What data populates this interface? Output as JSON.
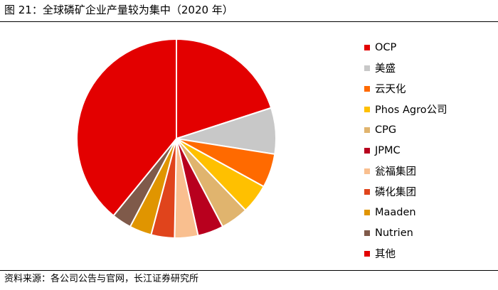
{
  "figure": {
    "title": "图 21：全球磷矿企业产量较为集中（2020 年）",
    "source": "资料来源：各公司公告与官网，长江证券研究所"
  },
  "chart_data": {
    "type": "pie",
    "title": "图 21：全球磷矿企业产量较为集中（2020 年）",
    "categories": [
      "OCP",
      "美盛",
      "云天化",
      "Phos Agro公司",
      "CPG",
      "JPMC",
      "瓮福集团",
      "磷化集团",
      "Maaden",
      "Nutrien",
      "其他"
    ],
    "values": [
      20.0,
      7.5,
      5.5,
      4.8,
      4.5,
      4.2,
      3.8,
      3.8,
      3.6,
      3.2,
      39.1
    ],
    "unit": "%",
    "colors": [
      "#E30000",
      "#C8C8C8",
      "#FF6A00",
      "#FFC000",
      "#E0B46E",
      "#B8001E",
      "#F9BF8F",
      "#E0441C",
      "#E09500",
      "#7F5A4A",
      "#E30000"
    ],
    "start_angle_deg": 0,
    "direction": "clockwise",
    "legend_position": "right",
    "data_labels": false
  }
}
